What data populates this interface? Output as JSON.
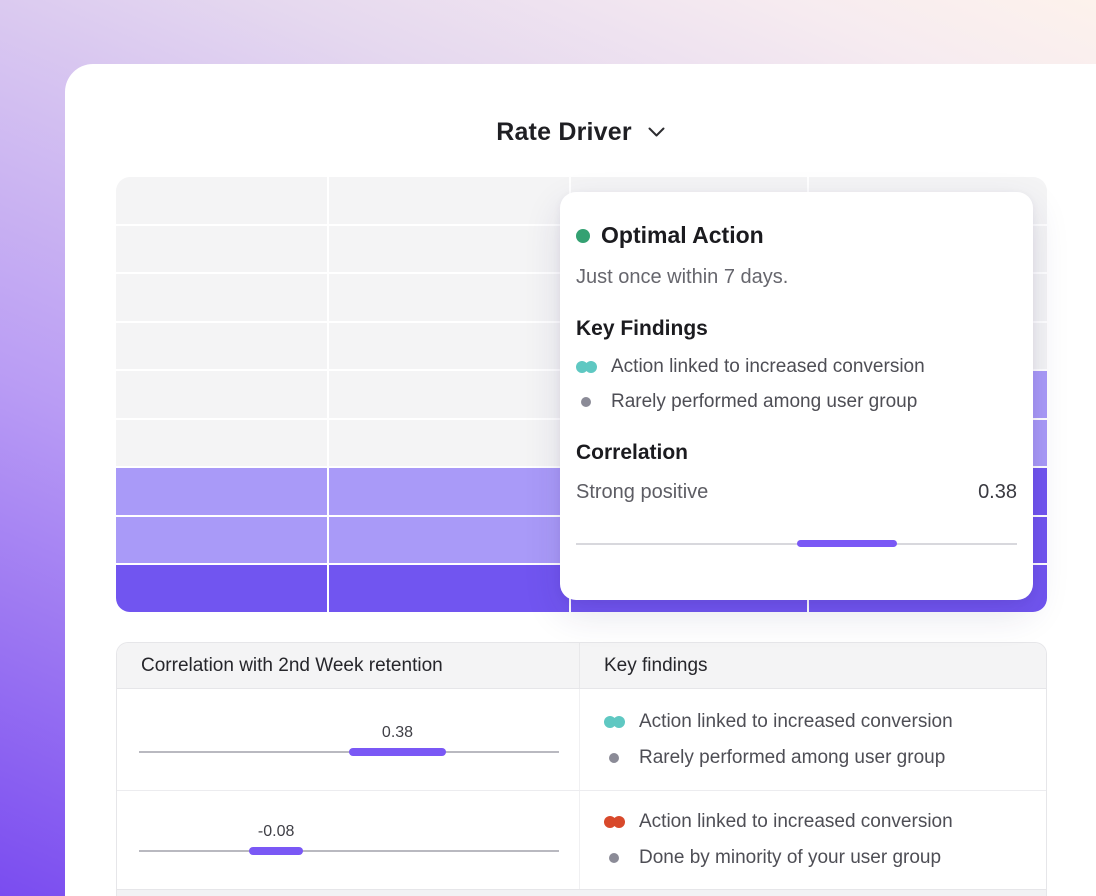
{
  "header": {
    "title": "Rate Driver"
  },
  "colors": {
    "gray": "#f4f4f5",
    "light": "#a99af8",
    "dark": "#7155f0",
    "bar_purple": "#7a58f5",
    "green_dot": "#34a172",
    "teal_bullet": "#5fc8c2",
    "red_bullet": "#d8492b",
    "gray_bullet": "#8b8b97"
  },
  "heatmap": {
    "columns": 4,
    "rows": 9,
    "cells": [
      [
        "gray",
        "gray",
        "gray",
        "gray"
      ],
      [
        "gray",
        "gray",
        "gray",
        "gray"
      ],
      [
        "gray",
        "gray",
        "gray",
        "gray"
      ],
      [
        "gray",
        "gray",
        "gray",
        "gray"
      ],
      [
        "gray",
        "gray",
        "gray",
        "light"
      ],
      [
        "gray",
        "gray",
        "gray",
        "light"
      ],
      [
        "light",
        "light",
        "light",
        "dark"
      ],
      [
        "light",
        "light",
        "light",
        "dark"
      ],
      [
        "dark",
        "dark",
        "dark",
        "dark"
      ]
    ]
  },
  "popover": {
    "title": "Optimal Action",
    "subtitle": "Just once within 7 days.",
    "key_findings_heading": "Key Findings",
    "findings": [
      {
        "bullet": "teal-double",
        "text": "Action linked to increased conversion"
      },
      {
        "bullet": "gray",
        "text": "Rarely performed among user group"
      }
    ],
    "correlation_heading": "Correlation",
    "correlation_label": "Strong positive",
    "correlation_value": "0.38",
    "slider": {
      "left_pct": 50.1,
      "width_pct": 22.6
    }
  },
  "table": {
    "headers": [
      "Correlation with 2nd Week retention",
      "Key findings"
    ],
    "rows": [
      {
        "value": "0.38",
        "bar": {
          "left_pct": 50.0,
          "width_pct": 23.1
        },
        "findings": [
          {
            "bullet": "teal-double",
            "text": "Action linked to increased conversion"
          },
          {
            "bullet": "gray",
            "text": "Rarely performed among user group"
          }
        ]
      },
      {
        "value": "-0.08",
        "bar": {
          "left_pct": 26.2,
          "width_pct": 12.9
        },
        "findings": [
          {
            "bullet": "red-double",
            "text": "Action linked to increased conversion"
          },
          {
            "bullet": "gray",
            "text": "Done by minority of your user group"
          }
        ]
      }
    ]
  }
}
